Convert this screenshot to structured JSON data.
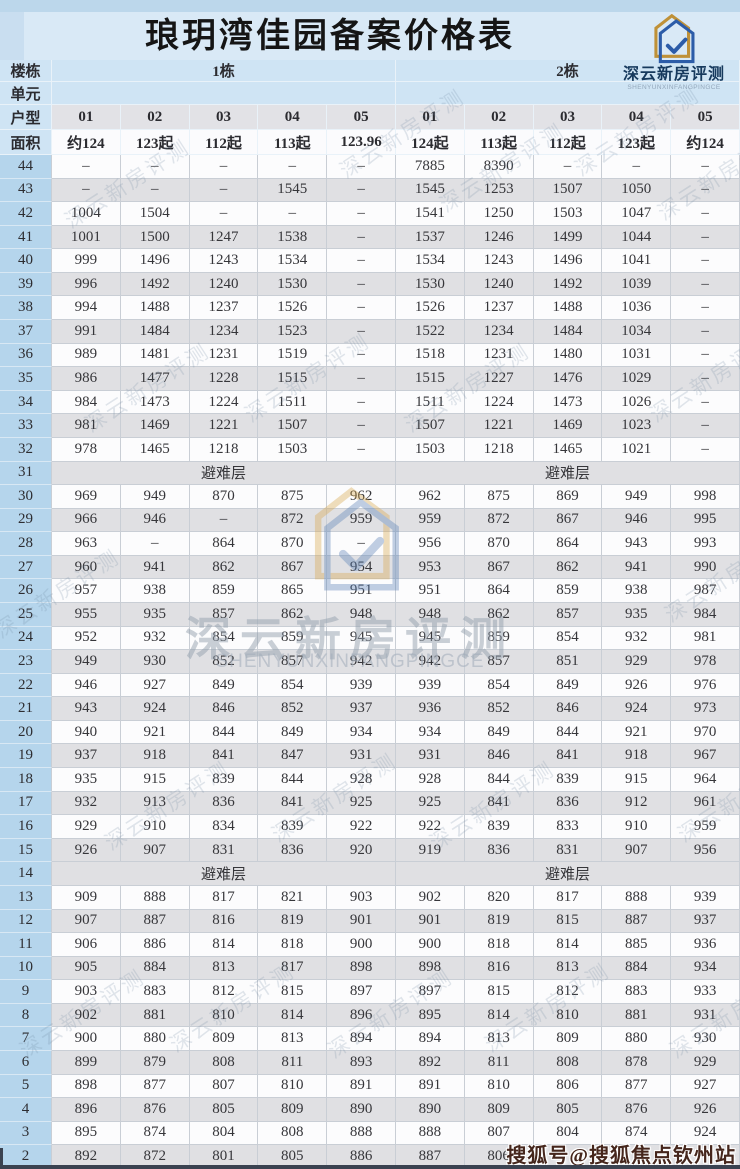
{
  "title": "琅玥湾佳园备案价格表",
  "logo": {
    "name": "深云新房评测",
    "subname": "SHENYUNXINFANGPINGCE"
  },
  "colors": {
    "page_bg": "#c9def0",
    "header_blue": "#cfe4f4",
    "floor_col_blue": "#b5d5ec",
    "stripe_gray": "#e0e0e3",
    "stripe_white": "#fcfcfd",
    "logo_gold": "#bf9138",
    "logo_blue": "#2c5ca8",
    "sohu_text": "#45261c"
  },
  "watermarks": {
    "diagonal_text": "深云新房评测",
    "center_name": "深云新房评测",
    "center_subname": "SHENYUNXINFANGPINGCE",
    "bottom_right": "搜狐号@搜狐焦点钦州站"
  },
  "table": {
    "row_labels": {
      "building": "楼栋",
      "unit": "单元",
      "type": "户型",
      "area": "面积"
    },
    "buildings": [
      "1栋",
      "2栋"
    ],
    "types": [
      "01",
      "02",
      "03",
      "04",
      "05",
      "01",
      "02",
      "03",
      "04",
      "05"
    ],
    "areas": [
      "约124",
      "123起",
      "112起",
      "113起",
      "123.96",
      "124起",
      "113起",
      "112起",
      "123起",
      "约124"
    ],
    "refuge_label": "避难层",
    "floors": [
      {
        "floor": "44",
        "values": [
          "–",
          "–",
          "–",
          "–",
          "–",
          "7885",
          "8390",
          "–",
          "–",
          "–"
        ]
      },
      {
        "floor": "43",
        "values": [
          "–",
          "–",
          "–",
          "1545",
          "–",
          "1545",
          "1253",
          "1507",
          "1050",
          "–"
        ]
      },
      {
        "floor": "42",
        "values": [
          "1004",
          "1504",
          "–",
          "–",
          "–",
          "1541",
          "1250",
          "1503",
          "1047",
          "–"
        ]
      },
      {
        "floor": "41",
        "values": [
          "1001",
          "1500",
          "1247",
          "1538",
          "–",
          "1537",
          "1246",
          "1499",
          "1044",
          "–"
        ]
      },
      {
        "floor": "40",
        "values": [
          "999",
          "1496",
          "1243",
          "1534",
          "–",
          "1534",
          "1243",
          "1496",
          "1041",
          "–"
        ]
      },
      {
        "floor": "39",
        "values": [
          "996",
          "1492",
          "1240",
          "1530",
          "–",
          "1530",
          "1240",
          "1492",
          "1039",
          "–"
        ]
      },
      {
        "floor": "38",
        "values": [
          "994",
          "1488",
          "1237",
          "1526",
          "–",
          "1526",
          "1237",
          "1488",
          "1036",
          "–"
        ]
      },
      {
        "floor": "37",
        "values": [
          "991",
          "1484",
          "1234",
          "1523",
          "–",
          "1522",
          "1234",
          "1484",
          "1034",
          "–"
        ]
      },
      {
        "floor": "36",
        "values": [
          "989",
          "1481",
          "1231",
          "1519",
          "–",
          "1518",
          "1231",
          "1480",
          "1031",
          "–"
        ]
      },
      {
        "floor": "35",
        "values": [
          "986",
          "1477",
          "1228",
          "1515",
          "–",
          "1515",
          "1227",
          "1476",
          "1029",
          "–"
        ]
      },
      {
        "floor": "34",
        "values": [
          "984",
          "1473",
          "1224",
          "1511",
          "–",
          "1511",
          "1224",
          "1473",
          "1026",
          "–"
        ]
      },
      {
        "floor": "33",
        "values": [
          "981",
          "1469",
          "1221",
          "1507",
          "–",
          "1507",
          "1221",
          "1469",
          "1023",
          "–"
        ]
      },
      {
        "floor": "32",
        "values": [
          "978",
          "1465",
          "1218",
          "1503",
          "–",
          "1503",
          "1218",
          "1465",
          "1021",
          "–"
        ]
      },
      {
        "floor": "31",
        "refuge": true
      },
      {
        "floor": "30",
        "values": [
          "969",
          "949",
          "870",
          "875",
          "962",
          "962",
          "875",
          "869",
          "949",
          "998"
        ]
      },
      {
        "floor": "29",
        "values": [
          "966",
          "946",
          "–",
          "872",
          "959",
          "959",
          "872",
          "867",
          "946",
          "995"
        ]
      },
      {
        "floor": "28",
        "values": [
          "963",
          "–",
          "864",
          "870",
          "–",
          "956",
          "870",
          "864",
          "943",
          "993"
        ]
      },
      {
        "floor": "27",
        "values": [
          "960",
          "941",
          "862",
          "867",
          "954",
          "953",
          "867",
          "862",
          "941",
          "990"
        ]
      },
      {
        "floor": "26",
        "values": [
          "957",
          "938",
          "859",
          "865",
          "951",
          "951",
          "864",
          "859",
          "938",
          "987"
        ]
      },
      {
        "floor": "25",
        "values": [
          "955",
          "935",
          "857",
          "862",
          "948",
          "948",
          "862",
          "857",
          "935",
          "984"
        ]
      },
      {
        "floor": "24",
        "values": [
          "952",
          "932",
          "854",
          "859",
          "945",
          "945",
          "859",
          "854",
          "932",
          "981"
        ]
      },
      {
        "floor": "23",
        "values": [
          "949",
          "930",
          "852",
          "857",
          "942",
          "942",
          "857",
          "851",
          "929",
          "978"
        ]
      },
      {
        "floor": "22",
        "values": [
          "946",
          "927",
          "849",
          "854",
          "939",
          "939",
          "854",
          "849",
          "926",
          "976"
        ]
      },
      {
        "floor": "21",
        "values": [
          "943",
          "924",
          "846",
          "852",
          "937",
          "936",
          "852",
          "846",
          "924",
          "973"
        ]
      },
      {
        "floor": "20",
        "values": [
          "940",
          "921",
          "844",
          "849",
          "934",
          "934",
          "849",
          "844",
          "921",
          "970"
        ]
      },
      {
        "floor": "19",
        "values": [
          "937",
          "918",
          "841",
          "847",
          "931",
          "931",
          "846",
          "841",
          "918",
          "967"
        ]
      },
      {
        "floor": "18",
        "values": [
          "935",
          "915",
          "839",
          "844",
          "928",
          "928",
          "844",
          "839",
          "915",
          "964"
        ]
      },
      {
        "floor": "17",
        "values": [
          "932",
          "913",
          "836",
          "841",
          "925",
          "925",
          "841",
          "836",
          "912",
          "961"
        ]
      },
      {
        "floor": "16",
        "values": [
          "929",
          "910",
          "834",
          "839",
          "922",
          "922",
          "839",
          "833",
          "910",
          "959"
        ]
      },
      {
        "floor": "15",
        "values": [
          "926",
          "907",
          "831",
          "836",
          "920",
          "919",
          "836",
          "831",
          "907",
          "956"
        ]
      },
      {
        "floor": "14",
        "refuge": true
      },
      {
        "floor": "13",
        "values": [
          "909",
          "888",
          "817",
          "821",
          "903",
          "902",
          "820",
          "817",
          "888",
          "939"
        ]
      },
      {
        "floor": "12",
        "values": [
          "907",
          "887",
          "816",
          "819",
          "901",
          "901",
          "819",
          "815",
          "887",
          "937"
        ]
      },
      {
        "floor": "11",
        "values": [
          "906",
          "886",
          "814",
          "818",
          "900",
          "900",
          "818",
          "814",
          "885",
          "936"
        ]
      },
      {
        "floor": "10",
        "values": [
          "905",
          "884",
          "813",
          "817",
          "898",
          "898",
          "816",
          "813",
          "884",
          "934"
        ]
      },
      {
        "floor": "9",
        "values": [
          "903",
          "883",
          "812",
          "815",
          "897",
          "897",
          "815",
          "812",
          "883",
          "933"
        ]
      },
      {
        "floor": "8",
        "values": [
          "902",
          "881",
          "810",
          "814",
          "896",
          "895",
          "814",
          "810",
          "881",
          "931"
        ]
      },
      {
        "floor": "7",
        "values": [
          "900",
          "880",
          "809",
          "813",
          "894",
          "894",
          "813",
          "809",
          "880",
          "930"
        ]
      },
      {
        "floor": "6",
        "values": [
          "899",
          "879",
          "808",
          "811",
          "893",
          "892",
          "811",
          "808",
          "878",
          "929"
        ]
      },
      {
        "floor": "5",
        "values": [
          "898",
          "877",
          "807",
          "810",
          "891",
          "891",
          "810",
          "806",
          "877",
          "927"
        ]
      },
      {
        "floor": "4",
        "values": [
          "896",
          "876",
          "805",
          "809",
          "890",
          "890",
          "809",
          "805",
          "876",
          "926"
        ]
      },
      {
        "floor": "3",
        "values": [
          "895",
          "874",
          "804",
          "808",
          "888",
          "888",
          "807",
          "804",
          "874",
          "924"
        ]
      },
      {
        "floor": "2",
        "values": [
          "892",
          "872",
          "801",
          "805",
          "886",
          "887",
          "806",
          "",
          "",
          ""
        ]
      }
    ]
  }
}
